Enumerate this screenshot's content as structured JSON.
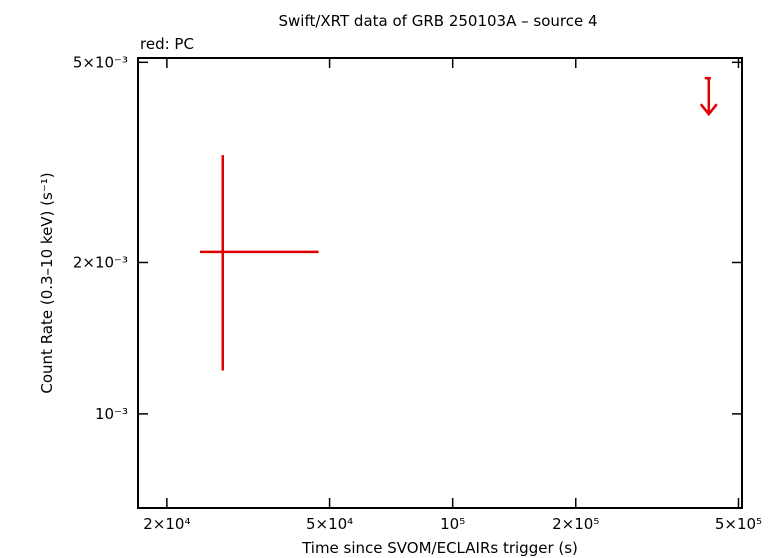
{
  "chart_data": {
    "type": "scatter",
    "title": "Swift/XRT data of GRB 250103A – source 4",
    "legend_text": "red: PC",
    "x_label": "Time since SVOM/ECLAIRs trigger (s)",
    "y_label": "Count Rate (0.3–10 keV) (s⁻¹)",
    "x_log": true,
    "y_log": true,
    "xlim": [
      17000,
      510000
    ],
    "ylim": [
      0.00065,
      0.0051
    ],
    "xticks": [
      {
        "value": 20000,
        "label": "2×10⁴"
      },
      {
        "value": 50000,
        "label": "5×10⁴"
      },
      {
        "value": 100000,
        "label": "10⁵"
      },
      {
        "value": 200000,
        "label": "2×10⁵"
      },
      {
        "value": 500000,
        "label": "5×10⁵"
      }
    ],
    "yticks": [
      {
        "value": 0.001,
        "label": "10⁻³"
      },
      {
        "value": 0.002,
        "label": "2×10⁻³"
      },
      {
        "value": 0.005,
        "label": "5×10⁻³"
      }
    ],
    "series": [
      {
        "color": "#e00000",
        "x": [
          27400
        ],
        "x_low": [
          24100
        ],
        "x_high": [
          47000
        ],
        "values": [
          0.0021
        ],
        "y_low": [
          0.00122
        ],
        "y_high": [
          0.00327
        ]
      },
      {
        "color": "#e00000",
        "upper_limit": true,
        "x": [
          423000
        ],
        "values": [
          0.00465
        ]
      }
    ]
  }
}
